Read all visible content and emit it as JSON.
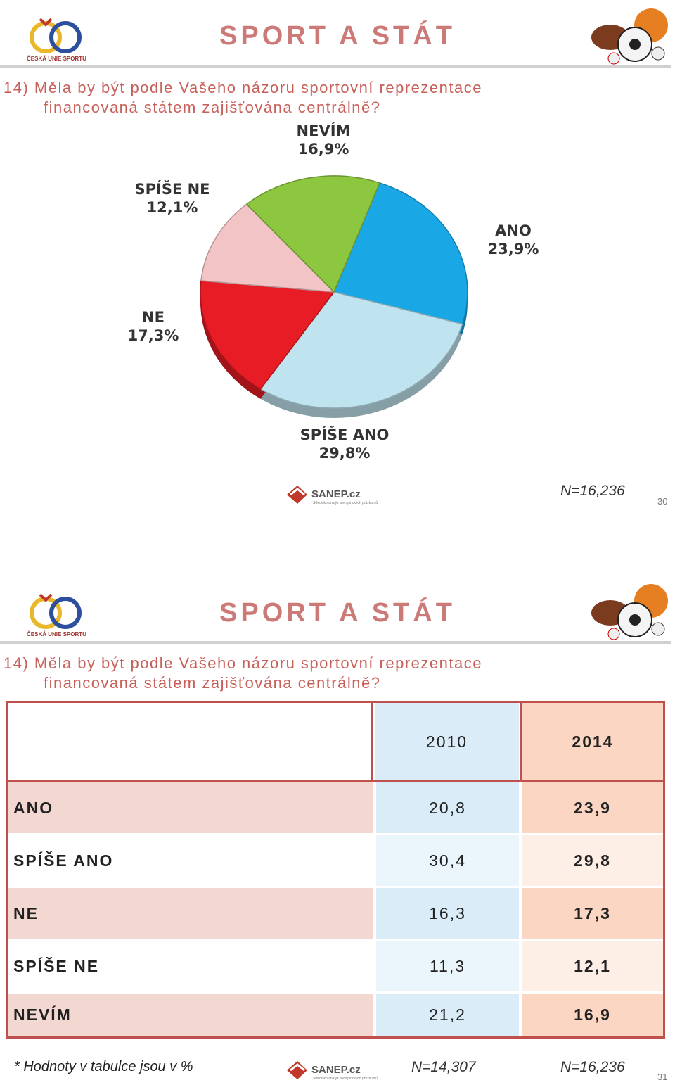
{
  "chart_data": {
    "type": "pie",
    "categories": [
      "ANO",
      "SPÍŠE ANO",
      "NE",
      "SPÍŠE NE",
      "NEVÍM"
    ],
    "values": [
      23.9,
      29.8,
      17.3,
      12.1,
      16.9
    ],
    "value_labels": [
      "23,9%",
      "29,8%",
      "17,3%",
      "12,1%",
      "16,9%"
    ],
    "colors": [
      "#1aa7e6",
      "#bfe3ef",
      "#e81c24",
      "#f2c4c6",
      "#8dc63f"
    ]
  },
  "slide1": {
    "title": "SPORT A STÁT",
    "question": [
      "14) Měla by být podle Vašeho názoru sportovní reprezentace",
      "financovaná státem zajišťována centrálně?"
    ],
    "logo": "ČESKÁ UNIE SPORTU",
    "sanep": "SANEP.cz",
    "sanep_tagline": "Středisko analýz a empirických průzkumů",
    "n": "N=16,236",
    "page": "30"
  },
  "slide2": {
    "title": "SPORT A STÁT",
    "question": [
      "14) Měla by být podle Vašeho názoru sportovní reprezentace",
      "financovaná státem zajišťována centrálně?"
    ],
    "logo": "ČESKÁ UNIE SPORTU",
    "sanep": "SANEP.cz",
    "sanep_tagline": "Středisko analýz a empirických průzkumů",
    "table": {
      "header": [
        "2010",
        "2014"
      ],
      "rows": [
        [
          "ANO",
          "20,8",
          "23,9"
        ],
        [
          "SPÍŠE ANO",
          "30,4",
          "29,8"
        ],
        [
          "NE",
          "16,3",
          "17,3"
        ],
        [
          "SPÍŠE NE",
          "11,3",
          "12,1"
        ],
        [
          "NEVÍM",
          "21,2",
          "16,9"
        ]
      ]
    },
    "note": "* Hodnoty v tabulce jsou v %",
    "n": [
      "N=14,307",
      "N=16,236"
    ],
    "page": "31"
  }
}
